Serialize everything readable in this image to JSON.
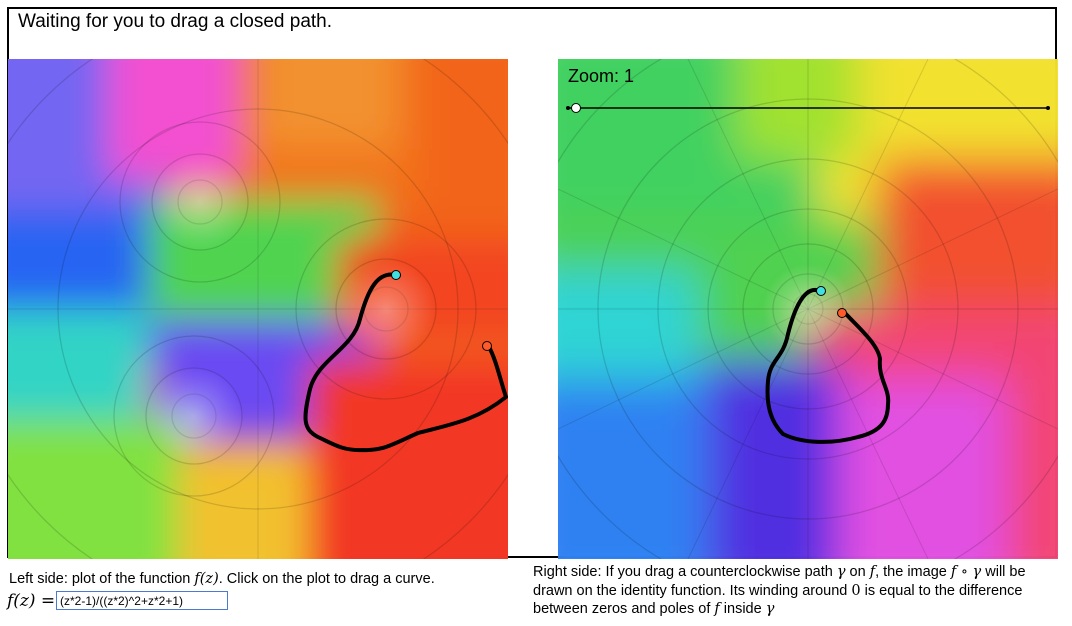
{
  "status": {
    "text": "Waiting for you to drag a closed path."
  },
  "zoom": {
    "label": "Zoom: 1",
    "value": 1
  },
  "left_caption": {
    "before": "Left side: plot of the function ",
    "fz": "f(z)",
    "after": ". Click on the plot to drag a curve."
  },
  "formula": {
    "label": "f(z) =",
    "input_value": "(z*2-1)/((z*2)^2+z*2+1)"
  },
  "right_caption": {
    "p1": "Right side: If you drag a counterclockwise path ",
    "gamma": "γ",
    "p2": " on ",
    "f": "f",
    "p3": ", the image ",
    "fog": "f ∘ γ",
    "p4": " will be drawn on the identity function. Its winding around ",
    "zero": "0",
    "p5": " is equal to the difference between zeros and poles of ",
    "f2": "f",
    "p6": " inside ",
    "gamma2": "γ"
  },
  "colors": {
    "path": "#000000",
    "start_marker": "#40e0e0",
    "end_marker": "#ff5a2a"
  }
}
